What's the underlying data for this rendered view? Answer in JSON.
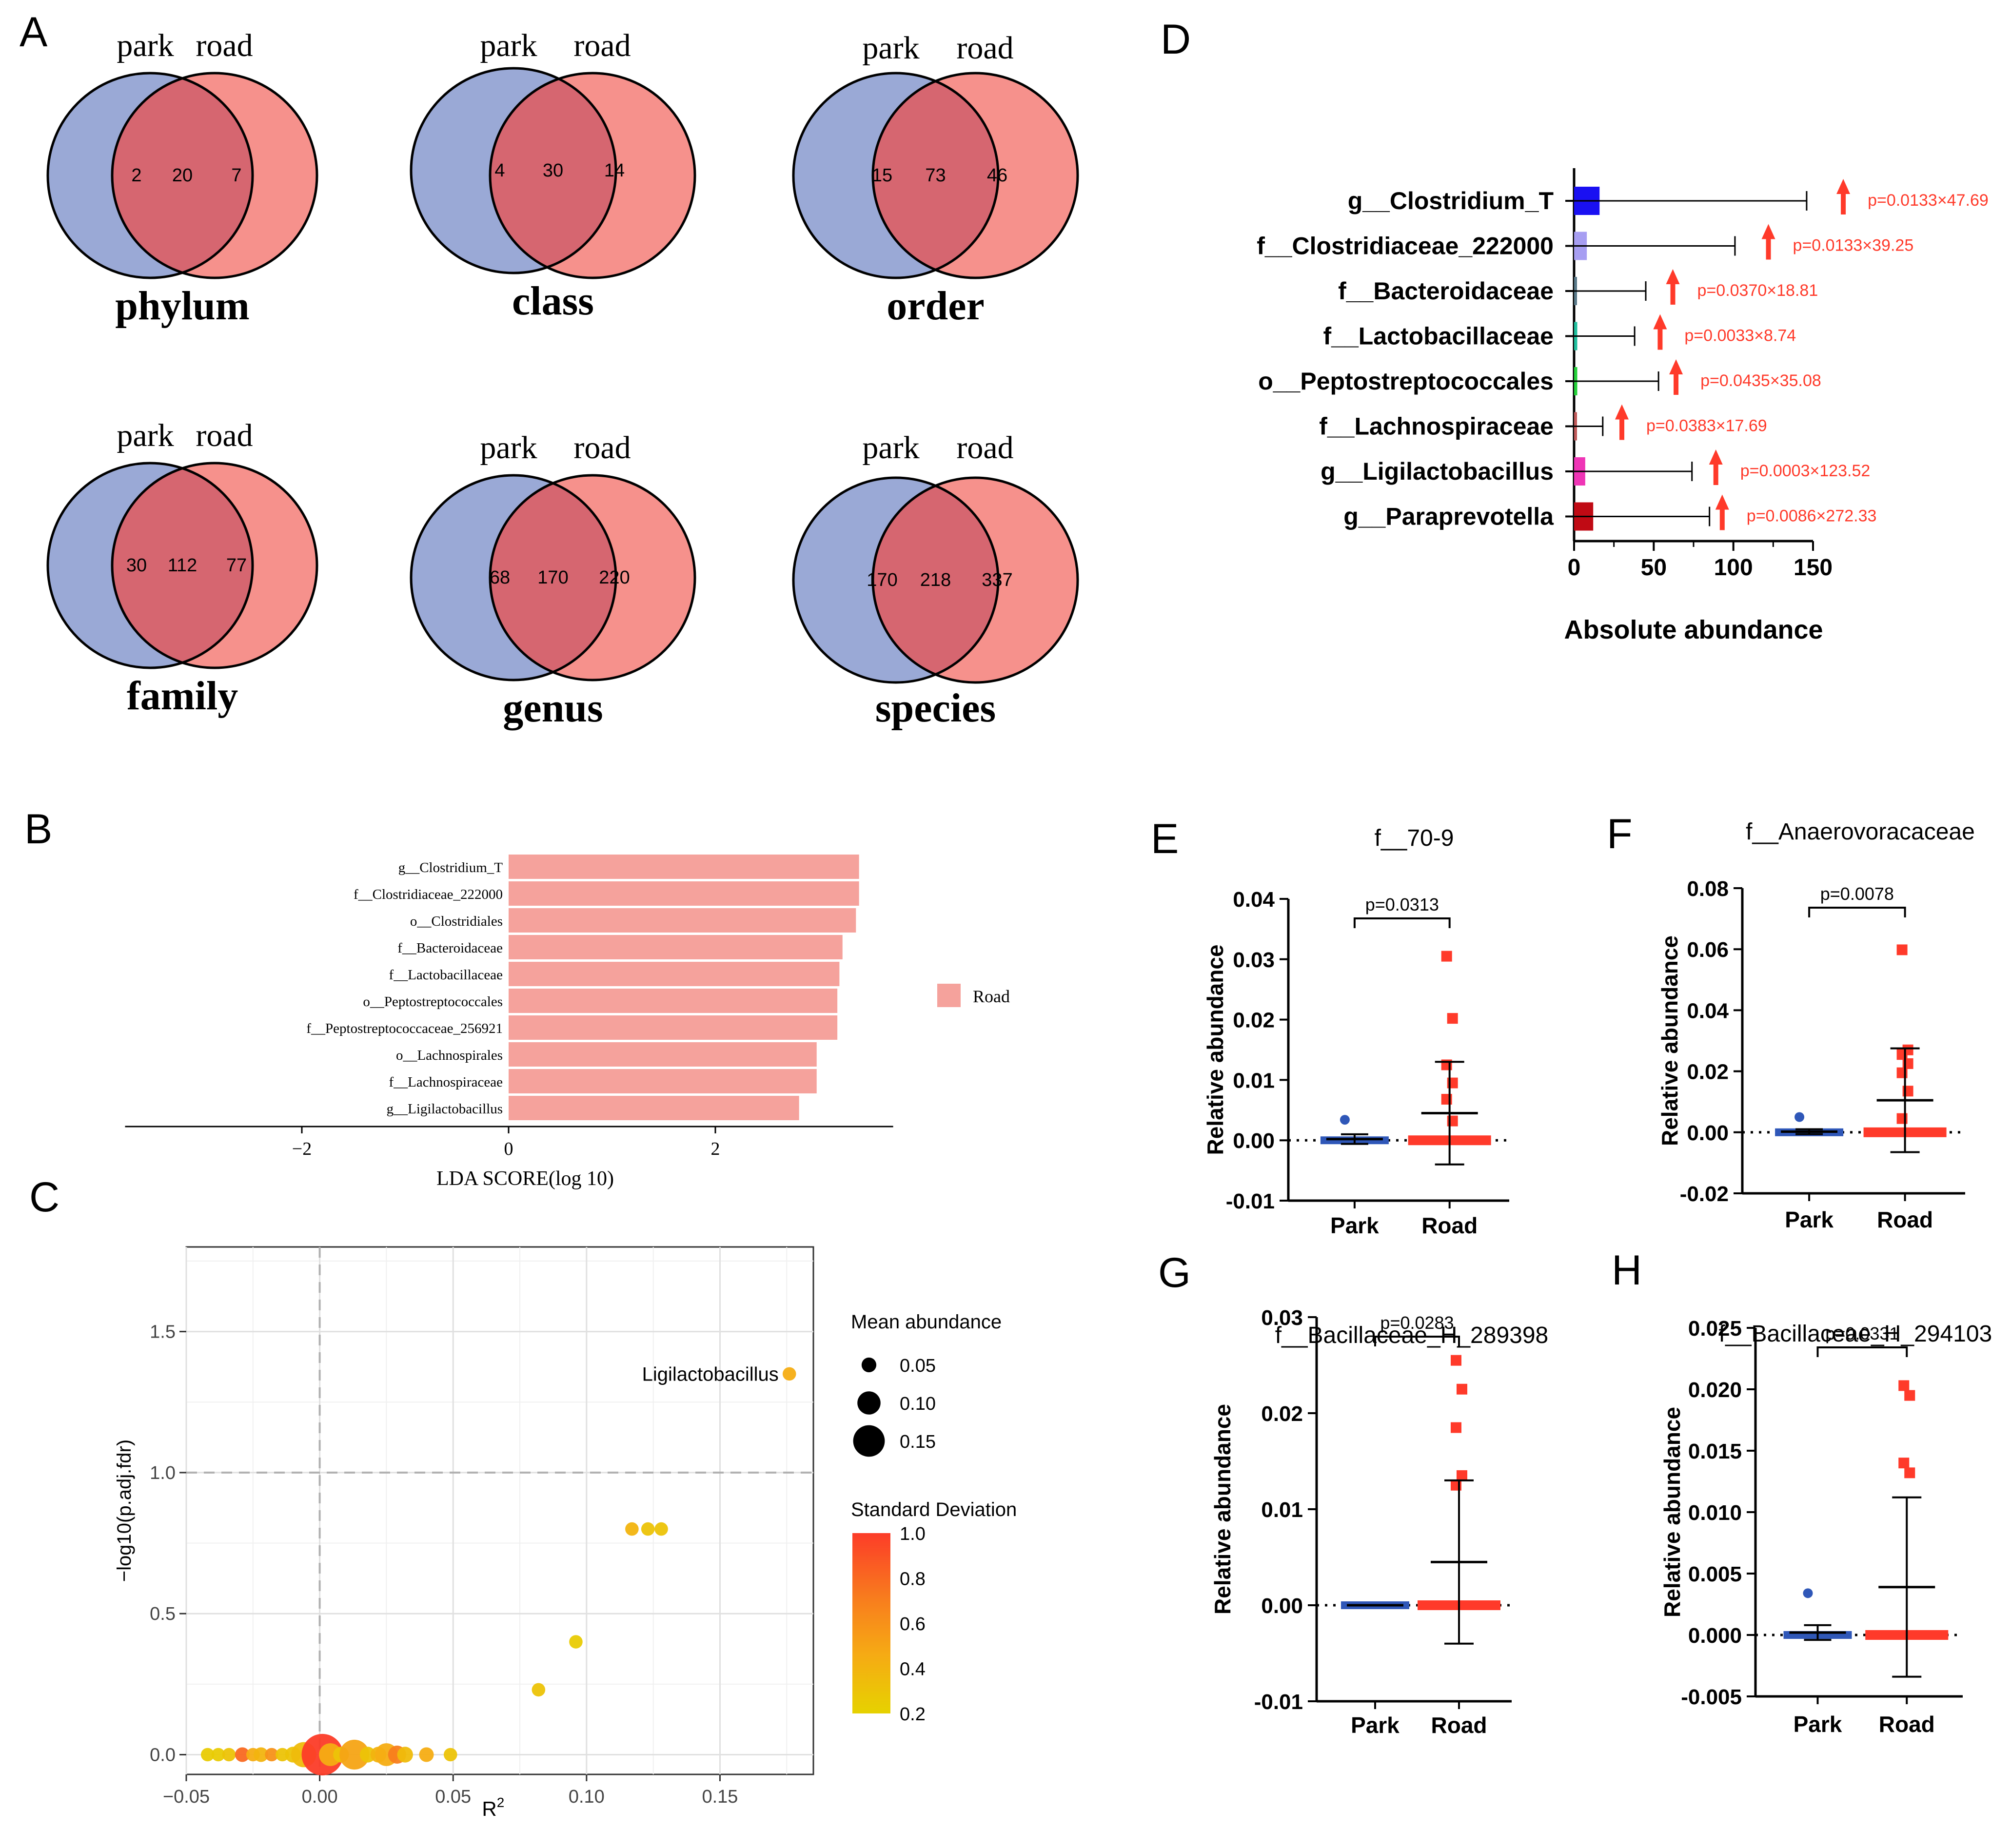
{
  "panel_labels": {
    "A": "A",
    "B": "B",
    "C": "C",
    "D": "D",
    "E": "E",
    "F": "F",
    "G": "G",
    "H": "H"
  },
  "colors": {
    "park": "#9aa9d6",
    "road": "#f6918c",
    "overlap": "#d66670",
    "lda_bar": "#f5a29c",
    "red": "#ff3a2a",
    "blue": "#2f57b8"
  },
  "chart_data": [
    {
      "type": "venn",
      "panel": "A",
      "diagrams": [
        {
          "title": "phylum",
          "set_labels": [
            "park",
            "road"
          ],
          "park_only": 2,
          "both": 20,
          "road_only": 7
        },
        {
          "title": "class",
          "set_labels": [
            "park",
            "road"
          ],
          "park_only": 4,
          "both": 30,
          "road_only": 14
        },
        {
          "title": "order",
          "set_labels": [
            "park",
            "road"
          ],
          "park_only": 15,
          "both": 73,
          "road_only": 46
        },
        {
          "title": "family",
          "set_labels": [
            "park",
            "road"
          ],
          "park_only": 30,
          "both": 112,
          "road_only": 77
        },
        {
          "title": "genus",
          "set_labels": [
            "park",
            "road"
          ],
          "park_only": 68,
          "both": 170,
          "road_only": 220
        },
        {
          "title": "species",
          "set_labels": [
            "park",
            "road"
          ],
          "park_only": 170,
          "both": 218,
          "road_only": 337
        }
      ]
    },
    {
      "type": "bar",
      "panel": "B",
      "orientation": "horizontal",
      "categories": [
        "g__Clostridium_T",
        "f__Clostridiaceae_222000",
        "o__Clostridiales",
        "f__Bacteroidaceae",
        "f__Lactobacillaceae",
        "o__Peptostreptococcales",
        "f__Peptostreptococcaceae_256921",
        "o__Lachnospirales",
        "f__Lachnospiraceae",
        "g__Ligilactobacillus"
      ],
      "values": [
        3.39,
        3.39,
        3.36,
        3.23,
        3.2,
        3.18,
        3.18,
        2.98,
        2.98,
        2.81
      ],
      "xlabel": "LDA SCORE(log 10)",
      "xticks": [
        -2,
        0,
        2
      ],
      "xlim": [
        -3.71,
        3.72
      ],
      "legend": "Road",
      "legend_position": "right"
    },
    {
      "type": "scatter",
      "panel": "C",
      "xlabel": "R",
      "xlabel_sup": "2",
      "ylabel": "−log10(p.adj.fdr)",
      "xlim": [
        -0.05,
        0.185
      ],
      "ylim": [
        -0.07,
        1.8
      ],
      "xticks": [
        -0.05,
        0.0,
        0.05,
        0.1,
        0.15
      ],
      "xtick_labels": [
        "−0.05",
        "0.00",
        "0.05",
        "0.10",
        "0.15"
      ],
      "yticks": [
        0.0,
        0.5,
        1.0,
        1.5
      ],
      "ytick_labels": [
        "0.0",
        "0.5",
        "1.0",
        "1.5"
      ],
      "hlines": [
        1.0
      ],
      "vlines": [
        0.0
      ],
      "size_legend": {
        "title": "Mean abundance",
        "values": [
          0.05,
          0.1,
          0.15
        ],
        "labels": [
          "0.05",
          "0.10",
          "0.15"
        ]
      },
      "color_legend": {
        "title": "Standard Deviation",
        "ticks": [
          "1.0",
          "0.8",
          "0.6",
          "0.4",
          "0.2"
        ],
        "min": 0.2,
        "max": 1.0
      },
      "annotation": "Ligilactobacillus",
      "points": [
        {
          "x": 0.176,
          "y": 1.35,
          "size": 0.02,
          "sd": 0.45
        },
        {
          "x": 0.117,
          "y": 0.8,
          "size": 0.02,
          "sd": 0.4
        },
        {
          "x": 0.123,
          "y": 0.8,
          "size": 0.02,
          "sd": 0.3
        },
        {
          "x": 0.128,
          "y": 0.8,
          "size": 0.02,
          "sd": 0.3
        },
        {
          "x": 0.096,
          "y": 0.4,
          "size": 0.02,
          "sd": 0.25
        },
        {
          "x": 0.082,
          "y": 0.23,
          "size": 0.02,
          "sd": 0.3
        },
        {
          "x": -0.042,
          "y": 0,
          "size": 0.02,
          "sd": 0.25
        },
        {
          "x": -0.038,
          "y": 0,
          "size": 0.02,
          "sd": 0.25
        },
        {
          "x": -0.034,
          "y": 0,
          "size": 0.02,
          "sd": 0.3
        },
        {
          "x": -0.029,
          "y": 0,
          "size": 0.025,
          "sd": 0.8
        },
        {
          "x": -0.025,
          "y": 0,
          "size": 0.02,
          "sd": 0.45
        },
        {
          "x": -0.022,
          "y": 0,
          "size": 0.025,
          "sd": 0.4
        },
        {
          "x": -0.018,
          "y": 0,
          "size": 0.02,
          "sd": 0.6
        },
        {
          "x": -0.014,
          "y": 0,
          "size": 0.02,
          "sd": 0.3
        },
        {
          "x": -0.01,
          "y": 0,
          "size": 0.03,
          "sd": 0.3
        },
        {
          "x": -0.006,
          "y": 0,
          "size": 0.07,
          "sd": 0.35
        },
        {
          "x": 0.001,
          "y": 0,
          "size": 0.14,
          "sd": 1.0
        },
        {
          "x": 0.004,
          "y": 0,
          "size": 0.06,
          "sd": 0.45
        },
        {
          "x": 0.008,
          "y": 0,
          "size": 0.03,
          "sd": 0.3
        },
        {
          "x": 0.013,
          "y": 0,
          "size": 0.09,
          "sd": 0.5
        },
        {
          "x": 0.018,
          "y": 0,
          "size": 0.03,
          "sd": 0.3
        },
        {
          "x": 0.022,
          "y": 0,
          "size": 0.03,
          "sd": 0.4
        },
        {
          "x": 0.025,
          "y": 0,
          "size": 0.06,
          "sd": 0.45
        },
        {
          "x": 0.029,
          "y": 0,
          "size": 0.04,
          "sd": 0.7
        },
        {
          "x": 0.032,
          "y": 0,
          "size": 0.03,
          "sd": 0.35
        },
        {
          "x": 0.04,
          "y": 0,
          "size": 0.025,
          "sd": 0.45
        },
        {
          "x": 0.049,
          "y": 0,
          "size": 0.02,
          "sd": 0.3
        }
      ]
    },
    {
      "type": "bar",
      "panel": "D",
      "orientation": "horizontal",
      "categories": [
        "g__Clostridium_T",
        "f__Clostridiaceae_222000",
        "f__Bacteroidaceae",
        "f__Lactobacillaceae",
        "o__Peptostreptococcales",
        "f__Lachnospiraceae",
        "g__Ligilactobacillus",
        "g__Paraprevotella"
      ],
      "values": [
        16,
        8,
        1,
        2,
        2,
        1,
        7,
        12
      ],
      "errors": [
        146,
        101,
        45,
        38,
        53,
        18,
        74,
        85
      ],
      "bar_colors": [
        "#1a10f2",
        "#a79ef2",
        "#5a7a8a",
        "#1fbf9e",
        "#24d13a",
        "#c05a5a",
        "#ef35b6",
        "#c00a14"
      ],
      "annotations": [
        "p=0.0133×47.69",
        "p=0.0133×39.25",
        "p=0.0370×18.81",
        "p=0.0033×8.74",
        "p=0.0435×35.08",
        "p=0.0383×17.69",
        "p=0.0003×123.52",
        "p=0.0086×272.33"
      ],
      "arrow_x": [
        169,
        122,
        62,
        54,
        64,
        30,
        89,
        93
      ],
      "xlabel": "Absolute abundance",
      "xlim": [
        0,
        150
      ],
      "xticks": [
        0,
        50,
        100,
        150
      ],
      "xtick_labels": [
        "0",
        "50",
        "100",
        "150"
      ]
    },
    {
      "type": "scatter",
      "panel": "E",
      "title": "f__70-9",
      "ylabel": "Relative abundance",
      "categories": [
        "Park",
        "Road"
      ],
      "ylim": [
        -0.01,
        0.04
      ],
      "yticks": [
        -0.01,
        0.0,
        0.01,
        0.02,
        0.03,
        0.04
      ],
      "ytick_labels": [
        "-0.01",
        "0.00",
        "0.01",
        "0.02",
        "0.03",
        "0.04"
      ],
      "pvalue": "p=0.0313",
      "park": {
        "mean": 0.0002,
        "sd": 0.0008,
        "points": [
          0.0034
        ]
      },
      "road": {
        "mean": 0.0045,
        "sd": 0.0085,
        "points": [
          0.0305,
          0.0202,
          0.0125,
          0.0095,
          0.0068,
          0.0032
        ]
      }
    },
    {
      "type": "scatter",
      "panel": "F",
      "title": "f__Anaerovoracaceae",
      "ylabel": "Relative abundance",
      "categories": [
        "Park",
        "Road"
      ],
      "ylim": [
        -0.02,
        0.08
      ],
      "yticks": [
        -0.02,
        0.0,
        0.02,
        0.04,
        0.06,
        0.08
      ],
      "ytick_labels": [
        "-0.02",
        "0.00",
        "0.02",
        "0.04",
        "0.06",
        "0.08"
      ],
      "pvalue": "p=0.0078",
      "park": {
        "mean": 0.0002,
        "sd": 0.0008,
        "points": [
          0.005
        ]
      },
      "road": {
        "mean": 0.0105,
        "sd": 0.017,
        "points": [
          0.0598,
          0.027,
          0.0255,
          0.0225,
          0.0195,
          0.0135,
          0.0045
        ]
      }
    },
    {
      "type": "scatter",
      "panel": "G",
      "title": "f__Bacillaceae_H_289398",
      "ylabel": "Relative abundance",
      "categories": [
        "Park",
        "Road"
      ],
      "ylim": [
        -0.01,
        0.03
      ],
      "yticks": [
        -0.01,
        0.0,
        0.01,
        0.02,
        0.03
      ],
      "ytick_labels": [
        "-0.01",
        "0.00",
        "0.01",
        "0.02",
        "0.03"
      ],
      "pvalue": "p=0.0283",
      "park": {
        "mean": 0.0,
        "sd": 0.0,
        "points": []
      },
      "road": {
        "mean": 0.0045,
        "sd": 0.0085,
        "points": [
          0.0255,
          0.0225,
          0.0185,
          0.0135,
          0.0125
        ]
      }
    },
    {
      "type": "scatter",
      "panel": "H",
      "title": "f__Bacillaceae_H_294103",
      "ylabel": "Relative abundance",
      "categories": [
        "Park",
        "Road"
      ],
      "ylim": [
        -0.005,
        0.025
      ],
      "yticks": [
        -0.005,
        0.0,
        0.005,
        0.01,
        0.015,
        0.02,
        0.025
      ],
      "ytick_labels": [
        "-0.005",
        "0.000",
        "0.005",
        "0.010",
        "0.015",
        "0.020",
        "0.025"
      ],
      "pvalue": "p=0.0331",
      "park": {
        "mean": 0.0002,
        "sd": 0.0006,
        "points": [
          0.0034
        ]
      },
      "road": {
        "mean": 0.0039,
        "sd": 0.0073,
        "points": [
          0.0203,
          0.0195,
          0.014,
          0.0132
        ]
      }
    }
  ]
}
